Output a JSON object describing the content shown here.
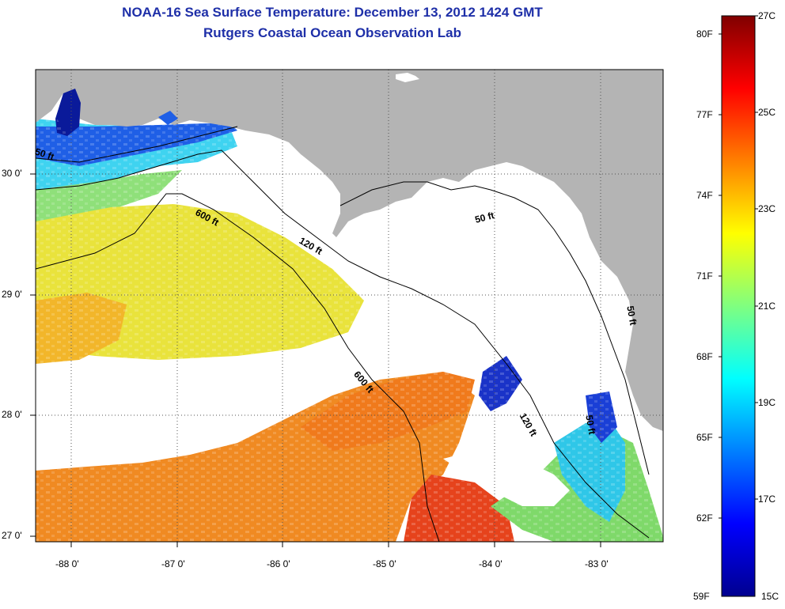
{
  "title": "NOAA-16 Sea Surface Temperature:  December 13, 2012 1424 GMT",
  "subtitle": "Rutgers Coastal Ocean Observation Lab",
  "map": {
    "lat_labels": [
      "30 0'",
      "29 0'",
      "28 0'",
      "27 0'"
    ],
    "lon_labels": [
      "-88 0'",
      "-87 0'",
      "-86 0'",
      "-85 0'",
      "-84 0'",
      "-83 0'"
    ],
    "isobath_labels": [
      "50 ft",
      "600 ft",
      "120 ft",
      "50 ft",
      "600 ft",
      "120 ft",
      "50 ft",
      "50 ft"
    ],
    "colors": {
      "land": "#b4b4b4",
      "no_data": "#ffffff",
      "frame": "#000000"
    }
  },
  "colorbar": {
    "f_labels": [
      "80F",
      "77F",
      "74F",
      "71F",
      "68F",
      "65F",
      "62F",
      "59F"
    ],
    "c_labels": [
      "27C",
      "25C",
      "23C",
      "21C",
      "19C",
      "17C",
      "15C"
    ],
    "range_c": [
      15,
      27
    ],
    "palette": [
      "#00008f",
      "#0000ff",
      "#00ffff",
      "#ffff00",
      "#ff0000",
      "#800000"
    ]
  }
}
